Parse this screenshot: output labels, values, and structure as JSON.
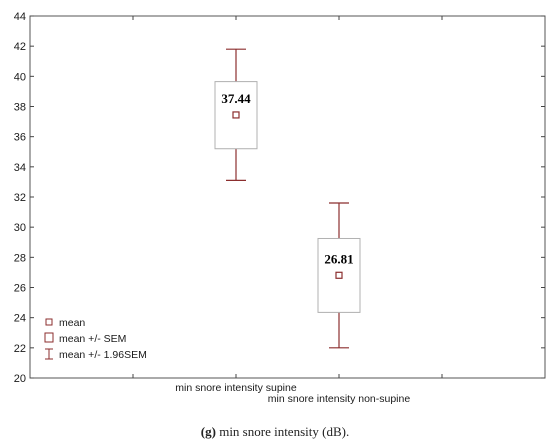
{
  "chart_data": {
    "type": "boxplot",
    "ylim": [
      20,
      44
    ],
    "yticks": [
      20,
      22,
      24,
      26,
      28,
      30,
      32,
      34,
      36,
      38,
      40,
      42,
      44
    ],
    "groups": [
      {
        "label": "min snore intensity supine",
        "mean": 37.44,
        "mean_label": "37.44",
        "sem_low": 35.2,
        "sem_high": 39.65,
        "ci_low": 33.1,
        "ci_high": 41.8
      },
      {
        "label": "min snore intensity non-supine",
        "mean": 26.81,
        "mean_label": "26.81",
        "sem_low": 24.35,
        "sem_high": 29.25,
        "ci_low": 22.0,
        "ci_high": 31.6
      }
    ],
    "legend": [
      {
        "symbol": "point",
        "label": "mean"
      },
      {
        "symbol": "box",
        "label": "mean +/- SEM"
      },
      {
        "symbol": "whisker",
        "label": "mean +/- 1.96SEM"
      }
    ],
    "grid": false,
    "legend_position": "bottom-left",
    "colors": {
      "marker": "#8b2e2e",
      "box": "#b0b0b0",
      "axis": "#444444"
    }
  },
  "caption": {
    "label": "(g)",
    "text": "min snore intensity (dB)."
  }
}
